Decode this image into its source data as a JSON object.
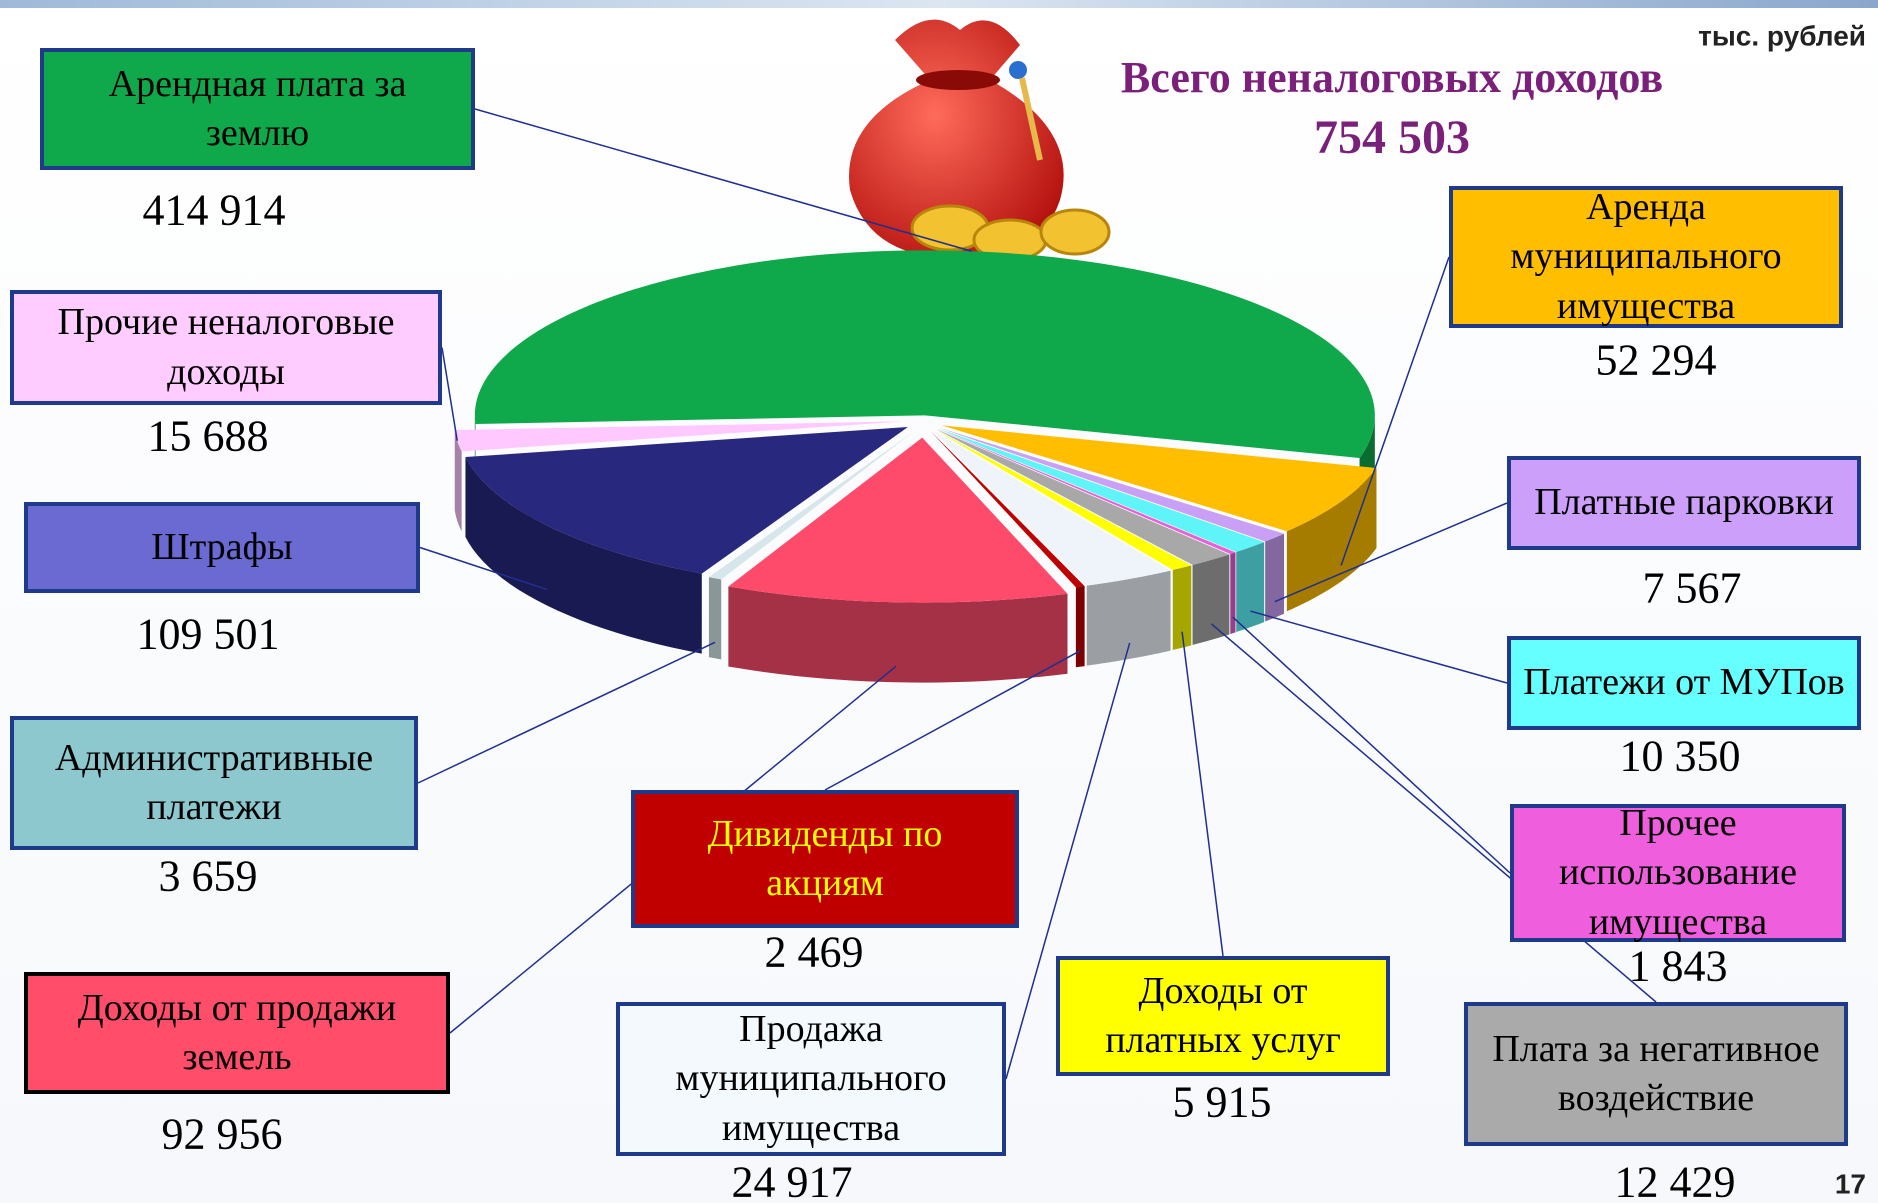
{
  "chart_data": {
    "type": "pie",
    "title": "Всего неналоговых доходов",
    "subtitle": "754 503",
    "units": "тыс. рублей",
    "page_number": "17",
    "categories": [
      "Арендная плата за землю",
      "Аренда муниципального имущества",
      "Платные парковки",
      "Платежи от МУПов",
      "Прочее использование имущества",
      "Плата за негативное воздействие",
      "Доходы от платных услуг",
      "Продажа муниципального имущества",
      "Дивиденды по акциям",
      "Доходы от продажи земель",
      "Административные платежи",
      "Штрафы",
      "Прочие неналоговые доходы"
    ],
    "values": [
      414914,
      52294,
      7567,
      10350,
      1843,
      12429,
      5915,
      24917,
      2469,
      92956,
      3659,
      109501,
      15688
    ],
    "value_labels": [
      "414 914",
      "52 294",
      "7 567",
      "10 350",
      "1 843",
      "12 429",
      "5 915",
      "24 917",
      "2 469",
      "92 956",
      "3 659",
      "109 501",
      "15 688"
    ],
    "colors": [
      "#0fa84a",
      "#ffbf00",
      "#c9a0f5",
      "#5ef4f8",
      "#e85fd8",
      "#a8a8a8",
      "#ffff00",
      "#eef4fa",
      "#c00000",
      "#fe4b6b",
      "#d6e6ea",
      "#28287e",
      "#ffc8ff"
    ],
    "box_colors": [
      "#0fa84a",
      "#ffbf00",
      "#cc9ffa",
      "#66ffff",
      "#ee5edd",
      "#aaaaaa",
      "#ffff00",
      "#f4f9fd",
      "#c00000",
      "#ff4d6a",
      "#8cc8cd",
      "#6a6ad2",
      "#ffccff"
    ]
  }
}
